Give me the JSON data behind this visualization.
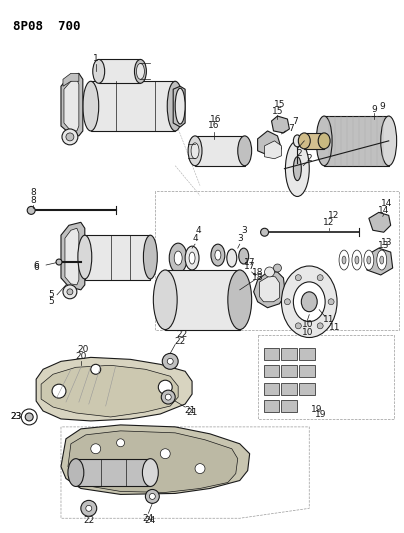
{
  "title": "8P08  700",
  "bg": "#f5f5f0",
  "lc": "#1a1a1a",
  "fig_width": 4.04,
  "fig_height": 5.33,
  "dpi": 100,
  "title_fontsize": 9,
  "label_fontsize": 6.5
}
